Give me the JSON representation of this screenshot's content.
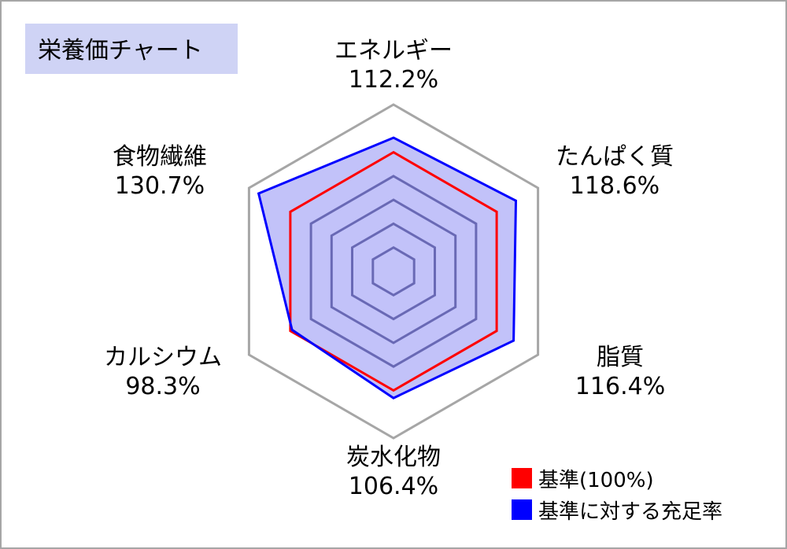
{
  "title": "栄養価チャート",
  "colors": {
    "baseline": "#ff0000",
    "actual_line": "#0000ff",
    "actual_fill": "#c3c3f7",
    "grid_outer": "#a6a6a6",
    "grid_inner": "#8a8aa6",
    "title_bg": "#cfd3f5"
  },
  "chart_data": {
    "type": "radar",
    "title": "栄養価チャート",
    "axes": [
      "エネルギー",
      "たんぱく質",
      "脂質",
      "炭水化物",
      "カルシウム",
      "食物繊維"
    ],
    "value_labels": [
      "112.2%",
      "118.6%",
      "116.4%",
      "106.4%",
      "98.3%",
      "130.7%"
    ],
    "range": [
      0,
      140
    ],
    "series": [
      {
        "name": "基準(100%)",
        "values": [
          100,
          100,
          100,
          100,
          100,
          100
        ]
      },
      {
        "name": "基準に対する充足率",
        "values": [
          112.2,
          118.6,
          116.4,
          106.4,
          98.3,
          130.7
        ]
      }
    ]
  }
}
